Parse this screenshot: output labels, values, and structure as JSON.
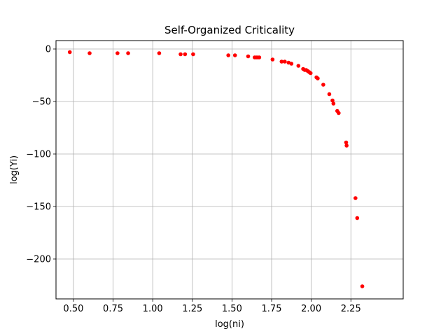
{
  "chart_data": {
    "type": "scatter",
    "title": "Self-Organized Criticality",
    "xlabel": "log(ni)",
    "ylabel": "log(Yi)",
    "xlim": [
      0.39,
      2.58
    ],
    "ylim": [
      -238,
      8
    ],
    "xticks": [
      0.5,
      0.75,
      1.0,
      1.25,
      1.5,
      1.75,
      2.0,
      2.25
    ],
    "xtick_labels": [
      "0.50",
      "0.75",
      "1.00",
      "1.25",
      "1.50",
      "1.75",
      "2.00",
      "2.25"
    ],
    "yticks": [
      0,
      -50,
      -100,
      -150,
      -200
    ],
    "ytick_labels": [
      "0",
      "−50",
      "−100",
      "−150",
      "−200"
    ],
    "grid": true,
    "marker_color": "#ff0000",
    "series": [
      {
        "x": [
          0.477,
          0.602,
          0.778,
          0.845,
          1.041,
          1.176,
          1.204,
          1.255,
          1.477,
          1.519,
          1.602,
          1.643,
          1.653,
          1.663,
          1.672,
          1.756,
          1.813,
          1.833,
          1.857,
          1.875,
          1.919,
          1.949,
          1.959,
          1.968,
          1.978,
          1.987,
          1.996,
          2.033,
          2.041,
          2.076,
          2.114,
          2.134,
          2.14,
          2.164,
          2.173,
          2.22,
          2.223,
          2.279,
          2.29,
          2.322
        ],
        "y": [
          -3,
          -4,
          -4,
          -4,
          -4,
          -5,
          -5,
          -5,
          -6,
          -6,
          -7,
          -8,
          -8,
          -8,
          -8,
          -10,
          -12,
          -12,
          -13,
          -14,
          -16,
          -19,
          -20,
          -20,
          -21,
          -22,
          -23,
          -27,
          -28,
          -34,
          -43,
          -49,
          -52,
          -59,
          -61,
          -89,
          -92,
          -142,
          -161,
          -226
        ]
      }
    ]
  }
}
